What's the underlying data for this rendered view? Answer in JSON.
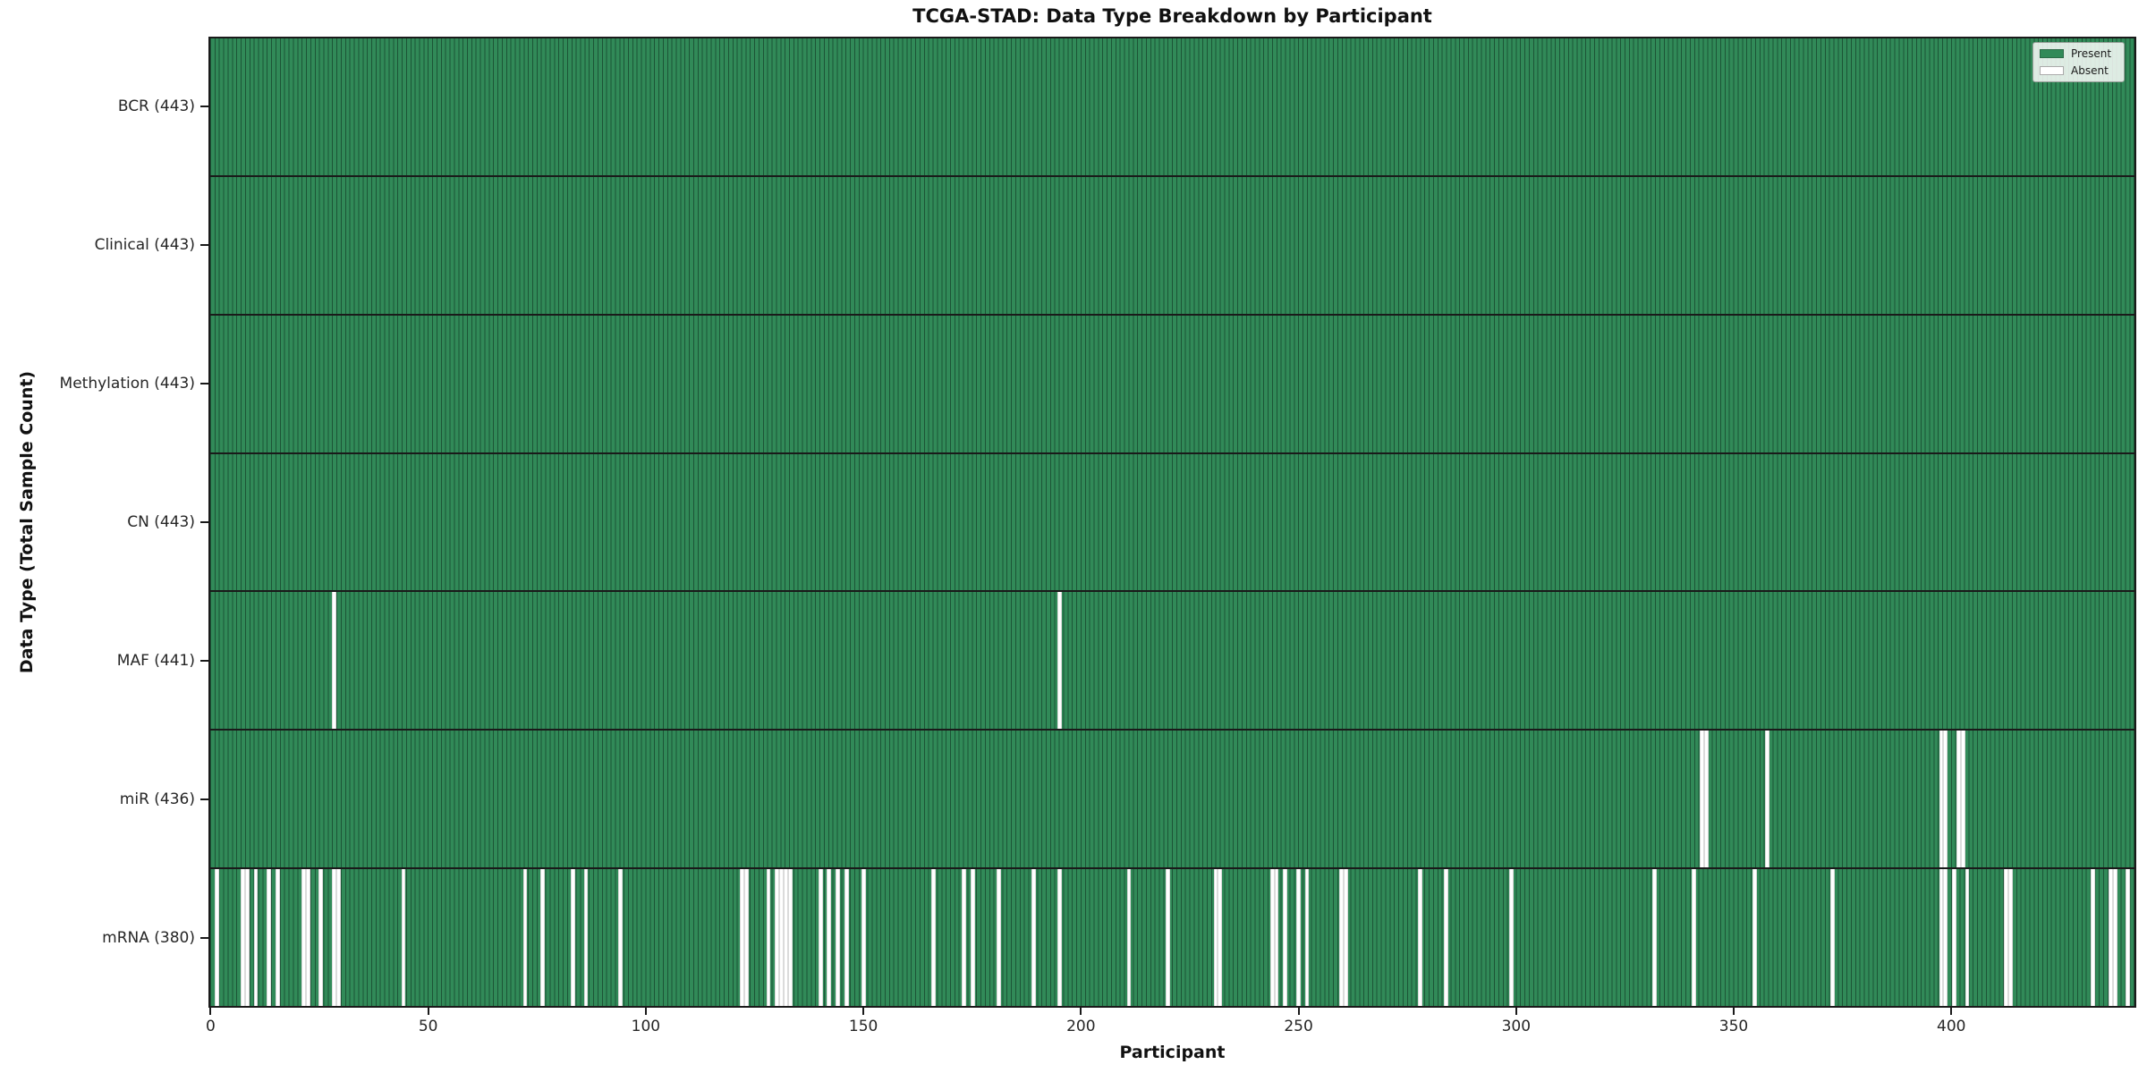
{
  "chart_data": {
    "type": "heatmap",
    "title": "TCGA-STAD: Data Type Breakdown by Participant",
    "xlabel": "Participant",
    "ylabel": "Data Type (Total Sample Count)",
    "n_participants": 443,
    "x_ticks": [
      0,
      50,
      100,
      150,
      200,
      250,
      300,
      350,
      400
    ],
    "present_color": "#318a58",
    "absent_color": "#ffffff",
    "legend_position": "upper right",
    "legend": [
      {
        "label": "Present",
        "color": "#318a58"
      },
      {
        "label": "Absent",
        "color": "#ffffff"
      }
    ],
    "rows": [
      {
        "data_type": "BCR",
        "label": "BCR (443)",
        "present_count": 443,
        "absent_participants": []
      },
      {
        "data_type": "Clinical",
        "label": "Clinical (443)",
        "present_count": 443,
        "absent_participants": []
      },
      {
        "data_type": "Methylation",
        "label": "Methylation (443)",
        "present_count": 443,
        "absent_participants": []
      },
      {
        "data_type": "CN",
        "label": "CN (443)",
        "present_count": 443,
        "absent_participants": []
      },
      {
        "data_type": "MAF",
        "label": "MAF (441)",
        "present_count": 441,
        "absent_participants": [
          28,
          195
        ]
      },
      {
        "data_type": "miR",
        "label": "miR (436)",
        "present_count": 436,
        "absent_participants": [
          343,
          344,
          358,
          398,
          399,
          402,
          403
        ]
      },
      {
        "data_type": "mRNA",
        "label": "mRNA (380)",
        "present_count": 380,
        "absent_participants": [
          1,
          7,
          8,
          10,
          13,
          15,
          21,
          22,
          25,
          28,
          29,
          44,
          72,
          76,
          83,
          86,
          94,
          122,
          123,
          128,
          130,
          131,
          132,
          133,
          140,
          142,
          144,
          146,
          150,
          166,
          173,
          175,
          181,
          189,
          195,
          211,
          220,
          231,
          232,
          244,
          245,
          247,
          250,
          252,
          260,
          261,
          278,
          284,
          299,
          332,
          341,
          355,
          373,
          398,
          399,
          401,
          404,
          413,
          414,
          433,
          437,
          438,
          441
        ]
      }
    ]
  }
}
